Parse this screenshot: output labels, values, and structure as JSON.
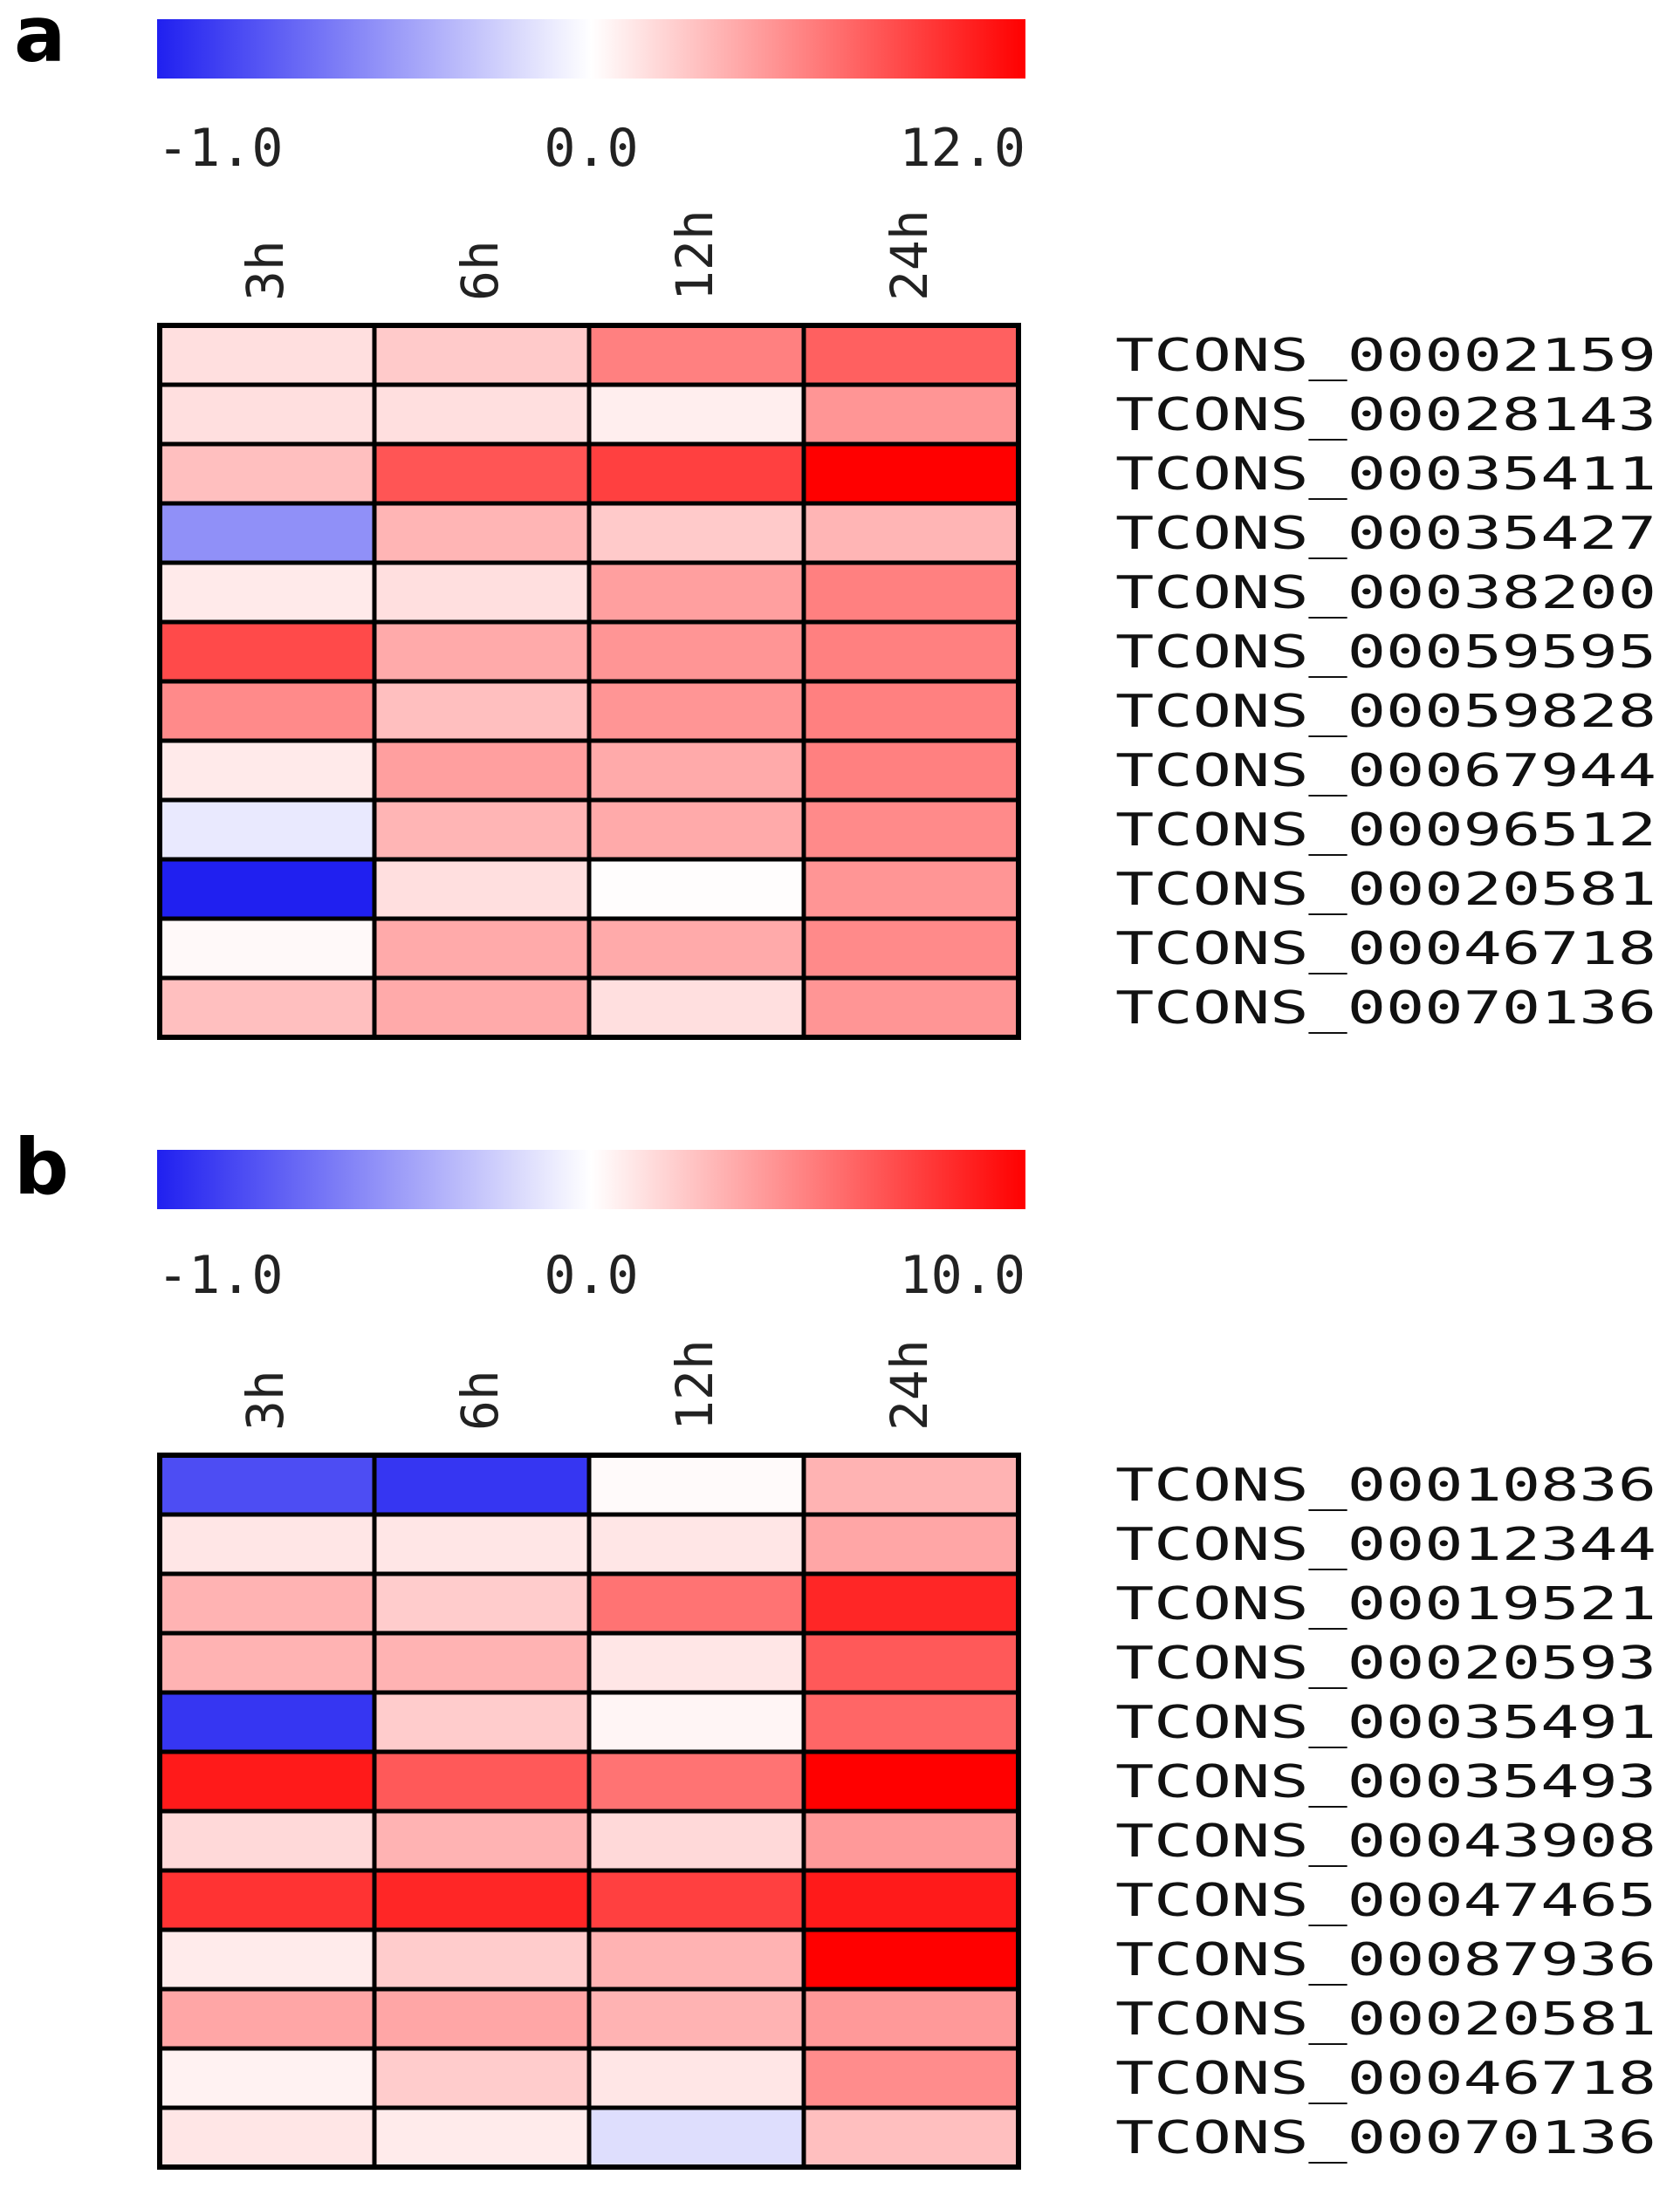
{
  "chart_data": [
    {
      "type": "heatmap",
      "panel_label": "a",
      "colorbar": {
        "min": -1.0,
        "mid": 0.0,
        "max": 12.0,
        "tick_labels": [
          "-1.0",
          "0.0",
          "12.0"
        ],
        "colors": {
          "low": "#2020f0",
          "mid": "#ffffff",
          "high": "#ff0000"
        }
      },
      "columns": [
        "3h",
        "6h",
        "12h",
        "24h"
      ],
      "rows": [
        "TCONS_00002159",
        "TCONS_00028143",
        "TCONS_00035411",
        "TCONS_00035427",
        "TCONS_00038200",
        "TCONS_00059595",
        "TCONS_00059828",
        "TCONS_00067944",
        "TCONS_00096512",
        "TCONS_00020581",
        "TCONS_00046718",
        "TCONS_00070136"
      ],
      "values": [
        [
          1.5,
          2.5,
          6.0,
          7.5
        ],
        [
          1.5,
          1.5,
          0.8,
          5.0
        ],
        [
          3.0,
          8.0,
          9.0,
          12.0
        ],
        [
          -0.5,
          3.5,
          2.5,
          3.5
        ],
        [
          1.0,
          1.5,
          4.5,
          6.0
        ],
        [
          8.5,
          4.0,
          5.0,
          6.0
        ],
        [
          5.5,
          3.0,
          5.0,
          6.0
        ],
        [
          1.0,
          4.5,
          4.0,
          6.0
        ],
        [
          -0.1,
          3.5,
          4.0,
          5.5
        ],
        [
          -1.0,
          1.5,
          0.1,
          5.0
        ],
        [
          0.3,
          4.0,
          4.0,
          5.5
        ],
        [
          3.0,
          4.0,
          1.5,
          5.0
        ]
      ]
    },
    {
      "type": "heatmap",
      "panel_label": "b",
      "colorbar": {
        "min": -1.0,
        "mid": 0.0,
        "max": 10.0,
        "tick_labels": [
          "-1.0",
          "0.0",
          "10.0"
        ],
        "colors": {
          "low": "#2020f0",
          "mid": "#ffffff",
          "high": "#ff0000"
        }
      },
      "columns": [
        "3h",
        "6h",
        "12h",
        "24h"
      ],
      "rows": [
        "TCONS_00010836",
        "TCONS_00012344",
        "TCONS_00019521",
        "TCONS_00020593",
        "TCONS_00035491",
        "TCONS_00035493",
        "TCONS_00043908",
        "TCONS_00047465",
        "TCONS_00087936",
        "TCONS_00020581",
        "TCONS_00046718",
        "TCONS_00070136"
      ],
      "values": [
        [
          -0.8,
          -0.9,
          0.2,
          3.0
        ],
        [
          1.0,
          1.0,
          1.0,
          3.5
        ],
        [
          3.0,
          2.0,
          5.5,
          8.5
        ],
        [
          3.0,
          3.0,
          1.0,
          6.5
        ],
        [
          -0.9,
          2.0,
          0.4,
          6.0
        ],
        [
          9.0,
          6.5,
          5.5,
          10.0
        ],
        [
          1.5,
          3.0,
          1.5,
          4.0
        ],
        [
          8.0,
          8.5,
          7.5,
          9.0
        ],
        [
          0.8,
          2.0,
          3.0,
          10.0
        ],
        [
          3.5,
          3.5,
          3.0,
          4.0
        ],
        [
          0.5,
          2.0,
          1.0,
          4.5
        ],
        [
          1.0,
          0.8,
          -0.15,
          2.5
        ]
      ]
    }
  ]
}
